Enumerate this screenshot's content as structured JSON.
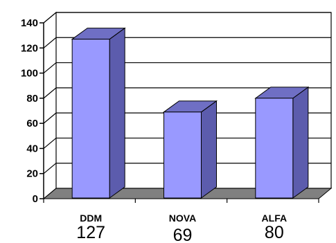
{
  "chart_data": {
    "type": "bar",
    "style": "3d-column",
    "categories": [
      "DDM",
      "NOVA",
      "ALFA"
    ],
    "values": [
      127,
      69,
      80
    ],
    "value_labels": [
      "127",
      "69",
      "80"
    ],
    "y_ticks": [
      "0",
      "20",
      "40",
      "60",
      "80",
      "100",
      "120",
      "140"
    ],
    "ylim": [
      0,
      140
    ],
    "grid": true,
    "legend": "none",
    "colors": {
      "bar_front": "#9999ff",
      "bar_side": "#5c5cad",
      "bar_top": "#6f6fc4",
      "floor": "#808080",
      "axis": "#000000"
    }
  }
}
